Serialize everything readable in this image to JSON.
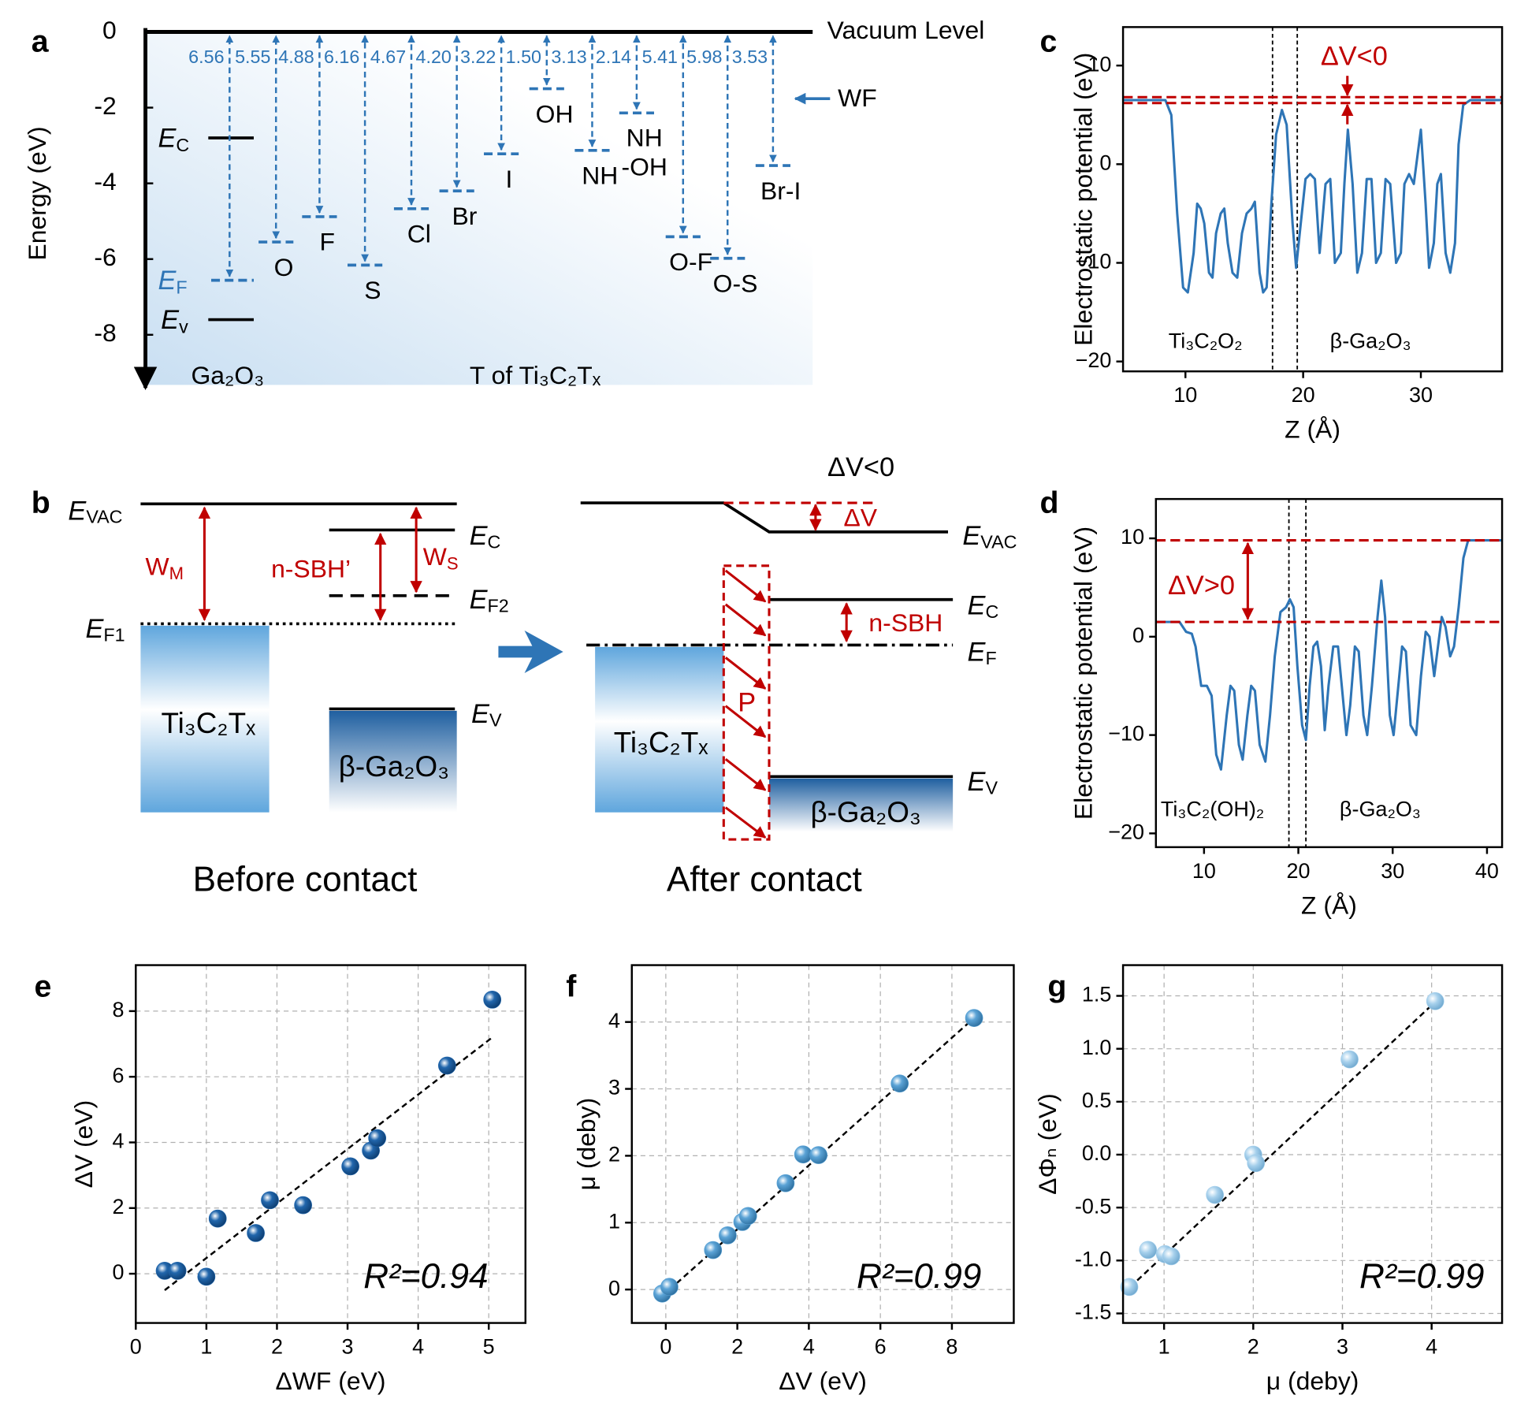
{
  "chart_data": [
    {
      "panel": "a",
      "type": "levels",
      "ylabel": "Energy (eV)",
      "ylim": [
        -9.4,
        0
      ],
      "yticks": [
        0,
        -2,
        -4,
        -6,
        -8
      ],
      "vacuum_label": "Vacuum Level",
      "wf_label": "WF",
      "group_label": "T of Ti₃C₂Tₓ",
      "categories": [
        "O",
        "F",
        "S",
        "Cl",
        "Br",
        "I",
        "OH",
        "NH",
        "NH\n-OH",
        "O-F",
        "O-S",
        "Br-I"
      ],
      "values": [
        5.55,
        4.88,
        6.16,
        4.67,
        4.2,
        3.22,
        1.5,
        3.13,
        2.14,
        5.41,
        5.98,
        3.53
      ],
      "value_labels": [
        "5.55",
        "4.88",
        "6.16",
        "4.67",
        "4.20",
        "3.22",
        "1.50",
        "3.13",
        "2.14",
        "5.41",
        "5.98",
        "3.53"
      ],
      "color": "#2e75b6",
      "ga2o3": {
        "label": "Ga₂O₃",
        "work_function": 6.56,
        "ec": -2.8,
        "ev": -7.6,
        "ec_label": {
          "main": "E",
          "sub": "C"
        },
        "ef_label": {
          "main": "E",
          "sub": "F"
        },
        "ev_label": {
          "main": "E",
          "sub": "v"
        }
      }
    },
    {
      "panel": "c",
      "type": "line",
      "ylabel": "Electrostatic potential (eV)",
      "xlabel": "Z (Å)",
      "xlim": [
        4.7,
        36.9
      ],
      "ylim": [
        -21,
        13.9
      ],
      "xticks": [
        10,
        20,
        30
      ],
      "yticks": [
        10,
        0,
        {
          "value": -10,
          "label": "−10"
        },
        {
          "value": -20,
          "label": "−20"
        }
      ],
      "color": "#2e75b6",
      "hline_color": "#c00000",
      "hlines": [
        6.2,
        6.8
      ],
      "vlines": [
        17.4,
        19.5
      ],
      "annotation": "ΔV<0",
      "region_labels": [
        "Ti₃C₂O₂",
        "β-Ga₂O₃"
      ],
      "x": [
        4.7,
        8.3,
        8.8,
        9.3,
        9.8,
        10.2,
        10.7,
        11.0,
        11.3,
        11.6,
        12.0,
        12.3,
        12.6,
        13.0,
        13.3,
        13.6,
        14.0,
        14.4,
        14.8,
        15.2,
        15.6,
        15.9,
        16.3,
        16.6,
        16.9,
        17.3,
        17.7,
        18.2,
        18.6,
        19.1,
        19.4,
        19.8,
        20.2,
        20.6,
        21.0,
        21.4,
        21.9,
        22.3,
        22.7,
        23.2,
        23.5,
        23.8,
        24.2,
        24.6,
        25.0,
        25.4,
        25.8,
        26.2,
        26.6,
        27.0,
        27.4,
        27.9,
        28.3,
        28.6,
        29.0,
        29.4,
        30.0,
        30.4,
        30.7,
        31.1,
        31.4,
        31.7,
        32.1,
        32.5,
        32.9,
        33.2,
        33.6,
        34.2,
        36.9
      ],
      "values": [
        6.5,
        6.5,
        5,
        -5,
        -12.5,
        -13,
        -9,
        -4,
        -4.5,
        -6,
        -11,
        -11.5,
        -7,
        -5,
        -4.5,
        -8,
        -11,
        -11.5,
        -7,
        -5,
        -4.5,
        -3.8,
        -11,
        -13,
        -12.5,
        -4,
        3,
        5.5,
        4,
        -6,
        -10.5,
        -6,
        -1.5,
        -1,
        -1.5,
        -9,
        -2,
        -1.5,
        -10,
        -9,
        -2,
        3.5,
        -2,
        -11,
        -9,
        -1.5,
        -1.5,
        -10,
        -9,
        -1.5,
        -2,
        -10,
        -9,
        -2,
        -1,
        -2,
        3.5,
        -4,
        -10.5,
        -8,
        -2,
        -1,
        -9,
        -11,
        -8,
        2,
        6,
        6.5,
        6.5
      ]
    },
    {
      "panel": "d",
      "type": "line",
      "ylabel": "Electrostatic potential (eV)",
      "xlabel": "Z (Å)",
      "xlim": [
        4.9,
        41.6
      ],
      "ylim": [
        -21.4,
        14
      ],
      "xticks": [
        10,
        20,
        30,
        40
      ],
      "yticks": [
        10,
        0,
        {
          "value": -10,
          "label": "−10"
        },
        {
          "value": -20,
          "label": "−20"
        }
      ],
      "color": "#2e75b6",
      "hline_color": "#c00000",
      "hlines": [
        9.8,
        1.5
      ],
      "vlines": [
        19.0,
        20.8
      ],
      "annotation": "ΔV>0",
      "region_labels": [
        "Ti₃C₂(OH)₂",
        "β-Ga₂O₃"
      ],
      "x": [
        4.9,
        7.4,
        8.1,
        8.7,
        9.1,
        9.7,
        10.3,
        10.8,
        11.3,
        11.8,
        12.4,
        12.8,
        13.2,
        13.7,
        14.1,
        14.6,
        15.0,
        15.4,
        15.9,
        16.5,
        17.0,
        17.5,
        18.1,
        18.7,
        19.1,
        19.5,
        19.9,
        20.4,
        20.8,
        21.2,
        21.6,
        22.0,
        22.4,
        22.8,
        23.2,
        23.7,
        24.2,
        24.6,
        25.1,
        25.5,
        26.0,
        26.4,
        26.9,
        27.3,
        27.8,
        28.4,
        28.8,
        29.2,
        29.7,
        30.1,
        30.6,
        31.0,
        31.4,
        31.9,
        32.5,
        33.0,
        33.5,
        33.9,
        34.4,
        34.8,
        35.2,
        35.6,
        36.1,
        36.5,
        37.0,
        37.5,
        38.0,
        41.6
      ],
      "values": [
        1.5,
        1.5,
        0.5,
        0.3,
        -1,
        -5,
        -5,
        -6,
        -12,
        -13.5,
        -8,
        -5,
        -5.5,
        -11,
        -12.5,
        -8,
        -5,
        -5.5,
        -11,
        -12.7,
        -8,
        -2,
        2.5,
        3,
        3.8,
        3,
        -3,
        -9,
        -10.5,
        -5,
        -1,
        -0.5,
        -3,
        -9.5,
        -5,
        -1,
        -1,
        -5,
        -10,
        -7,
        -1,
        -1.5,
        -8,
        -10,
        -5,
        2,
        5.7,
        2,
        -8,
        -10,
        -5,
        -1,
        -1.5,
        -9,
        -10,
        -4,
        0.5,
        0,
        -4,
        -1,
        2,
        1,
        -2,
        -1,
        3,
        8,
        9.8,
        9.8
      ]
    },
    {
      "panel": "e",
      "type": "scatter",
      "ylabel": "ΔV (eV)",
      "xlabel": "ΔWF (eV)",
      "xlim": [
        0,
        5.52
      ],
      "ylim": [
        -1.5,
        9.4
      ],
      "xticks": [
        0,
        1,
        2,
        3,
        4,
        5
      ],
      "yticks": [
        0,
        2,
        4,
        6,
        8
      ],
      "grid": true,
      "color": "#2166ac",
      "annotation": "R²=0.94",
      "x": [
        0.41,
        0.59,
        1.0,
        1.16,
        1.7,
        1.9,
        2.37,
        3.04,
        3.33,
        3.42,
        4.41,
        5.05
      ],
      "values": [
        0.09,
        0.09,
        -0.09,
        1.68,
        1.24,
        2.24,
        2.09,
        3.27,
        3.75,
        4.13,
        6.34,
        8.35
      ],
      "fit": {
        "x": [
          0.41,
          5.05
        ],
        "values": [
          -0.5,
          7.2
        ]
      }
    },
    {
      "panel": "f",
      "type": "scatter",
      "ylabel": "μ (deby)",
      "xlabel": "ΔV (eV)",
      "xlim": [
        -0.95,
        9.73
      ],
      "ylim": [
        -0.5,
        4.85
      ],
      "xticks": [
        0,
        2,
        4,
        6,
        8
      ],
      "yticks": [
        0,
        1,
        2,
        3,
        4
      ],
      "grid": true,
      "color": "#5ba3d6",
      "annotation": "R²=0.99",
      "x": [
        -0.1,
        0.1,
        1.32,
        1.73,
        2.14,
        2.3,
        3.35,
        3.84,
        4.27,
        6.54,
        8.62
      ],
      "values": [
        -0.06,
        0.04,
        0.59,
        0.81,
        1.01,
        1.1,
        1.59,
        2.02,
        2.01,
        3.08,
        4.06
      ],
      "fit": {
        "x": [
          -0.1,
          8.6
        ],
        "values": [
          -0.1,
          4.05
        ]
      }
    },
    {
      "panel": "g",
      "type": "scatter",
      "ylabel": "ΔΦₙ (eV)",
      "xlabel": "μ (deby)",
      "xlim": [
        0.54,
        4.79
      ],
      "ylim": [
        -1.59,
        1.79
      ],
      "xticks": [
        1,
        2,
        3,
        4
      ],
      "yticks": [
        -1.5,
        {
          "value": -1.0,
          "label": "-1.0"
        },
        -0.5,
        {
          "value": 0.0,
          "label": "0.0"
        },
        0.5,
        {
          "value": 1.0,
          "label": "1.0"
        },
        1.5
      ],
      "grid": true,
      "color": "#a6d0ec",
      "annotation": "R²=0.99",
      "x": [
        0.61,
        0.82,
        1.01,
        1.08,
        1.57,
        2.0,
        2.03,
        3.08,
        4.04
      ],
      "values": [
        -1.25,
        -0.9,
        -0.94,
        -0.96,
        -0.38,
        0.0,
        -0.08,
        0.9,
        1.45
      ],
      "fit": {
        "x": [
          0.62,
          4.05
        ],
        "values": [
          -1.25,
          1.45
        ]
      }
    }
  ],
  "diagram_b": {
    "panel": "b",
    "before": {
      "title": "Before contact",
      "e_vac": {
        "main": "E",
        "sub": "VAC"
      },
      "e_f1": {
        "main": "E",
        "sub": "F1"
      },
      "e_c": {
        "main": "E",
        "sub": "C"
      },
      "e_f2": {
        "main": "E",
        "sub": "F2"
      },
      "e_v": {
        "main": "E",
        "sub": "V"
      },
      "w_m": {
        "main": "W",
        "sub": "M"
      },
      "w_s": {
        "main": "W",
        "sub": "S"
      },
      "n_sbh": "n-SBH’",
      "metal": "Ti₃C₂Tₓ",
      "semi": "β-Ga₂O₃"
    },
    "after": {
      "title": "After contact",
      "heading": "ΔV<0",
      "delta_v": "ΔV",
      "e_vac": {
        "main": "E",
        "sub": "VAC"
      },
      "e_c": {
        "main": "E",
        "sub": "C"
      },
      "e_f": {
        "main": "E",
        "sub": "F"
      },
      "e_v": {
        "main": "E",
        "sub": "V"
      },
      "n_sbh": "n-SBH",
      "p": "P",
      "metal": "Ti₃C₂Tₓ",
      "semi": "β-Ga₂O₃"
    }
  }
}
